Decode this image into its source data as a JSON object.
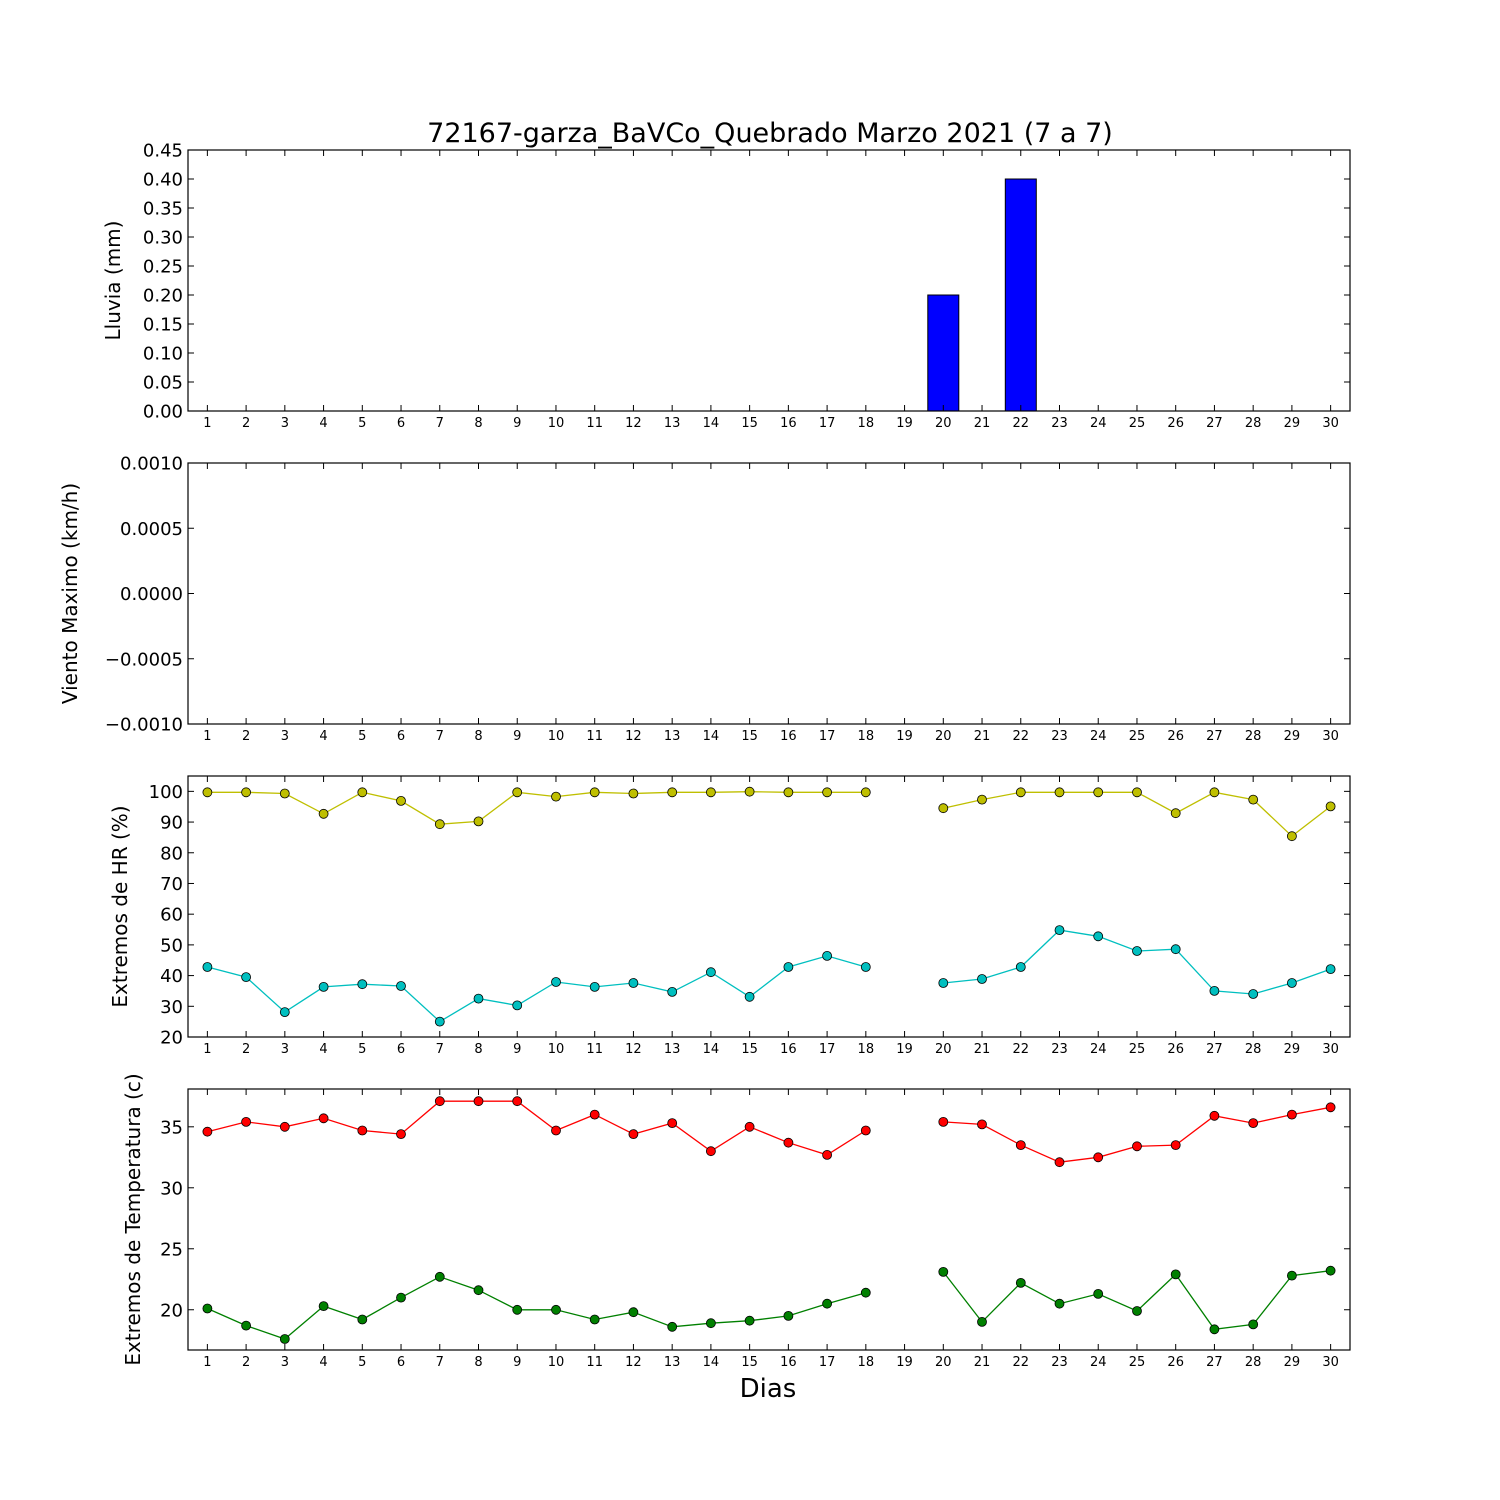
{
  "figure": {
    "title": "72167-garza_BaVCo_Quebrado Marzo 2021  (7 a 7)",
    "xlabel": "Dias"
  },
  "chart_data": [
    {
      "type": "bar",
      "ylabel": "Lluvia (mm)",
      "ylim": [
        0,
        0.45
      ],
      "yticks": [
        0.0,
        0.05,
        0.1,
        0.15,
        0.2,
        0.25,
        0.3,
        0.35,
        0.4,
        0.45
      ],
      "ytick_labels": [
        "0.00",
        "0.05",
        "0.10",
        "0.15",
        "0.20",
        "0.25",
        "0.30",
        "0.35",
        "0.40",
        "0.45"
      ],
      "xlim": [
        0.5,
        30.5
      ],
      "categories": [
        "1",
        "2",
        "3",
        "4",
        "5",
        "6",
        "7",
        "8",
        "9",
        "10",
        "11",
        "12",
        "13",
        "14",
        "15",
        "16",
        "17",
        "18",
        "19",
        "20",
        "21",
        "22",
        "23",
        "24",
        "25",
        "26",
        "27",
        "28",
        "29",
        "30"
      ],
      "values": [
        0,
        0,
        0,
        0,
        0,
        0,
        0,
        0,
        0,
        0,
        0,
        0,
        0,
        0,
        0,
        0,
        0,
        0,
        null,
        0.2,
        0,
        0.4,
        0,
        0,
        0,
        0,
        0,
        0,
        0,
        0
      ],
      "color": "#0000ff"
    },
    {
      "type": "line",
      "ylabel": "Viento Maximo (km/h)",
      "ylim": [
        -0.001,
        0.001
      ],
      "yticks": [
        -0.001,
        -0.0005,
        0.0,
        0.0005,
        0.001
      ],
      "ytick_labels": [
        "−0.0010",
        "−0.0005",
        "0.0000",
        "0.0005",
        "0.0010"
      ],
      "xlim": [
        0.5,
        30.5
      ],
      "categories": [
        "1",
        "2",
        "3",
        "4",
        "5",
        "6",
        "7",
        "8",
        "9",
        "10",
        "11",
        "12",
        "13",
        "14",
        "15",
        "16",
        "17",
        "18",
        "19",
        "20",
        "21",
        "22",
        "23",
        "24",
        "25",
        "26",
        "27",
        "28",
        "29",
        "30"
      ],
      "series": []
    },
    {
      "type": "line",
      "ylabel": "Extremos de HR (%)",
      "ylim": [
        20,
        105
      ],
      "yticks": [
        20,
        30,
        40,
        50,
        60,
        70,
        80,
        90,
        100
      ],
      "ytick_labels": [
        "20",
        "30",
        "40",
        "50",
        "60",
        "70",
        "80",
        "90",
        "100"
      ],
      "xlim": [
        0.5,
        30.5
      ],
      "categories": [
        "1",
        "2",
        "3",
        "4",
        "5",
        "6",
        "7",
        "8",
        "9",
        "10",
        "11",
        "12",
        "13",
        "14",
        "15",
        "16",
        "17",
        "18",
        "19",
        "20",
        "21",
        "22",
        "23",
        "24",
        "25",
        "26",
        "27",
        "28",
        "29",
        "30"
      ],
      "series": [
        {
          "color": "#bfbf00",
          "values": [
            99.7,
            99.7,
            99.3,
            92.7,
            99.7,
            96.9,
            89.3,
            90.2,
            99.7,
            98.3,
            99.7,
            99.3,
            99.7,
            99.7,
            99.9,
            99.7,
            99.7,
            99.7,
            null,
            94.5,
            97.3,
            99.7,
            99.7,
            99.7,
            99.7,
            92.9,
            99.7,
            97.3,
            85.4,
            95.1
          ]
        },
        {
          "color": "#00bfbf",
          "values": [
            42.8,
            39.5,
            28.1,
            36.3,
            37.2,
            36.6,
            25.0,
            32.5,
            30.3,
            37.9,
            36.3,
            37.6,
            34.7,
            41.1,
            33.1,
            42.8,
            46.4,
            42.8,
            null,
            37.6,
            38.9,
            42.8,
            54.8,
            52.8,
            48.0,
            48.6,
            35.0,
            34.0,
            37.6,
            42.1
          ]
        }
      ]
    },
    {
      "type": "line",
      "ylabel": "Extremos de Temperatura (c)",
      "ylim": [
        16.7,
        38.1
      ],
      "yticks": [
        20,
        25,
        30,
        35
      ],
      "ytick_labels": [
        "20",
        "25",
        "30",
        "35"
      ],
      "xlim": [
        0.5,
        30.5
      ],
      "categories": [
        "1",
        "2",
        "3",
        "4",
        "5",
        "6",
        "7",
        "8",
        "9",
        "10",
        "11",
        "12",
        "13",
        "14",
        "15",
        "16",
        "17",
        "18",
        "19",
        "20",
        "21",
        "22",
        "23",
        "24",
        "25",
        "26",
        "27",
        "28",
        "29",
        "30"
      ],
      "series": [
        {
          "color": "#ff0000",
          "values": [
            34.6,
            35.4,
            35.0,
            35.7,
            34.7,
            34.4,
            37.1,
            37.1,
            37.1,
            34.7,
            36.0,
            34.4,
            35.3,
            33.0,
            35.0,
            33.7,
            32.7,
            34.7,
            null,
            35.4,
            35.2,
            33.5,
            32.1,
            32.5,
            33.4,
            33.5,
            35.9,
            35.3,
            36.0,
            36.6
          ]
        },
        {
          "color": "#008000",
          "values": [
            20.1,
            18.7,
            17.6,
            20.3,
            19.2,
            21.0,
            22.7,
            21.6,
            20.0,
            20.0,
            19.2,
            19.8,
            18.6,
            18.9,
            19.1,
            19.5,
            20.5,
            21.4,
            null,
            23.1,
            19.0,
            22.2,
            20.5,
            21.3,
            19.9,
            22.9,
            18.4,
            18.8,
            22.8,
            23.2
          ]
        }
      ]
    }
  ]
}
